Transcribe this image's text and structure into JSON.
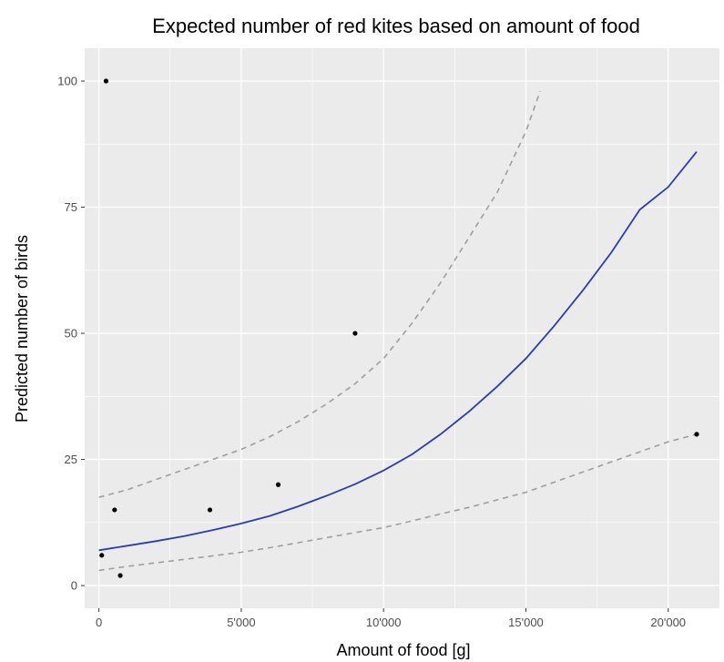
{
  "chart_data": {
    "type": "scatter",
    "title": "Expected number of red kites based on amount of food",
    "xlabel": "Amount of food [g]",
    "ylabel": "Predicted number of birds",
    "xlim": [
      -500,
      21800
    ],
    "ylim": [
      -4.5,
      106.5
    ],
    "x_ticks": [
      0,
      5000,
      10000,
      15000,
      20000
    ],
    "x_tick_labels": [
      "0",
      "5'000",
      "10'000",
      "15'000",
      "20'000"
    ],
    "y_ticks": [
      0,
      25,
      50,
      75,
      100
    ],
    "y_tick_labels": [
      "0",
      "25",
      "50",
      "75",
      "100"
    ],
    "grid": true,
    "legend": "none",
    "colors": {
      "panel_background": "#ebebeb",
      "grid": "#ffffff",
      "points": "#000000",
      "fit_line": "#2b3bb5",
      "ci_line": "#9e9e9e"
    },
    "series": [
      {
        "style": "points",
        "x": [
          100,
          250,
          550,
          750,
          3900,
          6300,
          9000,
          21000
        ],
        "y": [
          6,
          100,
          15,
          2,
          15,
          20,
          50,
          30
        ]
      },
      {
        "style": "solid-line",
        "x": [
          0,
          1000,
          2000,
          3000,
          4000,
          5000,
          6000,
          7000,
          8000,
          9000,
          10000,
          11000,
          12000,
          13000,
          14000,
          15000,
          16000,
          17000,
          18000,
          19000,
          20000,
          21000
        ],
        "y": [
          7,
          7.9,
          8.8,
          9.8,
          11,
          12.3,
          13.8,
          15.7,
          17.8,
          20.1,
          22.8,
          26,
          30,
          34.5,
          39.5,
          45,
          51.5,
          58.5,
          66,
          74.5,
          79,
          86
        ]
      },
      {
        "style": "dashed-line",
        "x": [
          0,
          1000,
          2000,
          3000,
          4000,
          5000,
          6000,
          7000,
          8000,
          9000,
          10000,
          11000,
          12000,
          13000,
          14000,
          15000,
          15500
        ],
        "y": [
          17.5,
          19,
          21,
          23,
          25,
          27,
          29.5,
          32.5,
          36,
          40,
          45,
          52,
          60,
          69,
          78,
          90,
          98
        ]
      },
      {
        "style": "dashed-line",
        "x": [
          0,
          1000,
          2000,
          3000,
          4000,
          5000,
          6000,
          7000,
          8000,
          9000,
          10000,
          11000,
          12000,
          13000,
          14000,
          15000,
          16000,
          17000,
          18000,
          19000,
          20000,
          21000
        ],
        "y": [
          3,
          3.8,
          4.5,
          5.2,
          5.9,
          6.6,
          7.5,
          8.5,
          9.5,
          10.5,
          11.5,
          12.8,
          14.2,
          15.5,
          17,
          18.5,
          20.5,
          22.5,
          24.5,
          26.5,
          28.5,
          30
        ]
      }
    ]
  }
}
